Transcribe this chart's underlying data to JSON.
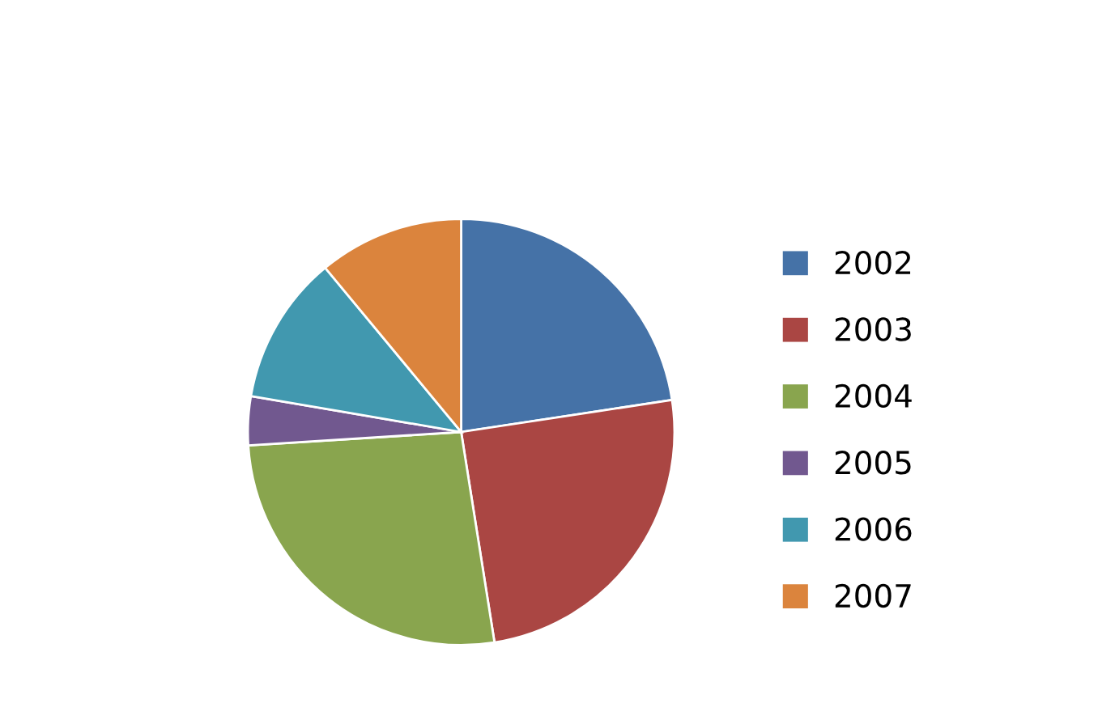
{
  "chart_data": {
    "type": "pie",
    "categories": [
      "2002",
      "2003",
      "2004",
      "2005",
      "2006",
      "2007"
    ],
    "values": [
      22.6,
      24.9,
      26.5,
      3.7,
      11.3,
      11.0
    ],
    "colors": [
      "#4572a7",
      "#aa4643",
      "#89a54e",
      "#71588f",
      "#4198af",
      "#db843d"
    ],
    "legend": "right"
  }
}
